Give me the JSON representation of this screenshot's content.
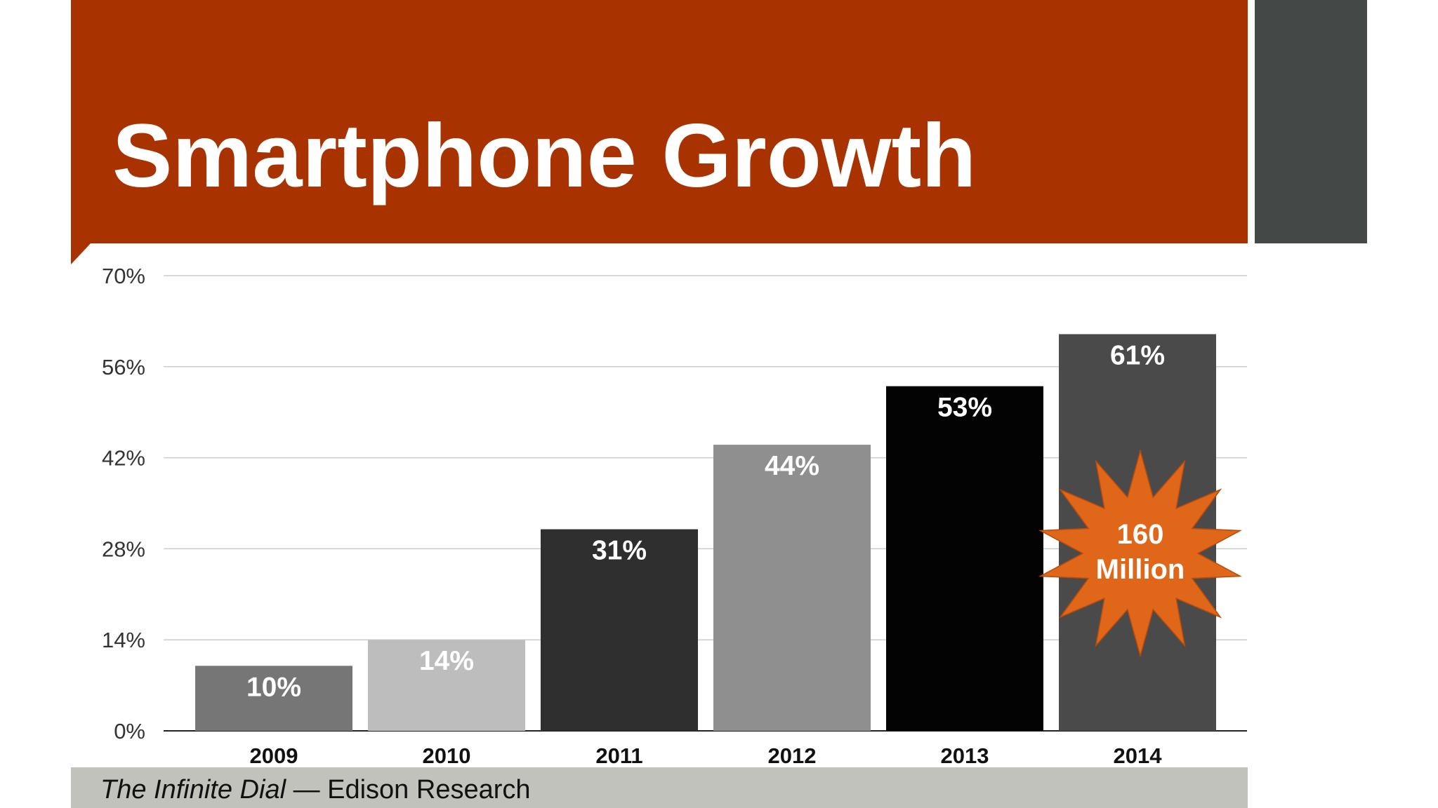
{
  "slide": {
    "title": "Smartphone Growth",
    "footer": {
      "source_italic": "The Infinite Dial",
      "source_rest": " — Edison Research"
    },
    "colors": {
      "title_band": "#a83300",
      "side_block": "#444846",
      "footer_bar": "#c2c2bc"
    }
  },
  "chart_data": {
    "type": "bar",
    "title": "",
    "xlabel": "",
    "ylabel": "",
    "categories": [
      "2009",
      "2010",
      "2011",
      "2012",
      "2013",
      "2014"
    ],
    "values": [
      10,
      14,
      31,
      44,
      53,
      61
    ],
    "data_labels": [
      "10%",
      "14%",
      "31%",
      "44%",
      "53%",
      "61%"
    ],
    "bar_colors": [
      "#767676",
      "#bdbdbd",
      "#2f2f2f",
      "#8f8f8f",
      "#030303",
      "#4a4a4a"
    ],
    "ylim": [
      0,
      70
    ],
    "yticks": [
      0,
      14,
      28,
      42,
      56,
      70
    ],
    "ytick_labels": [
      "0%",
      "14%",
      "28%",
      "42%",
      "56%",
      "70%"
    ],
    "grid": true,
    "legend": "none",
    "annotations": [
      {
        "text_lines": [
          "160",
          "Million"
        ],
        "category": "2014",
        "shape": "starburst",
        "color": "#e0661a"
      }
    ]
  }
}
